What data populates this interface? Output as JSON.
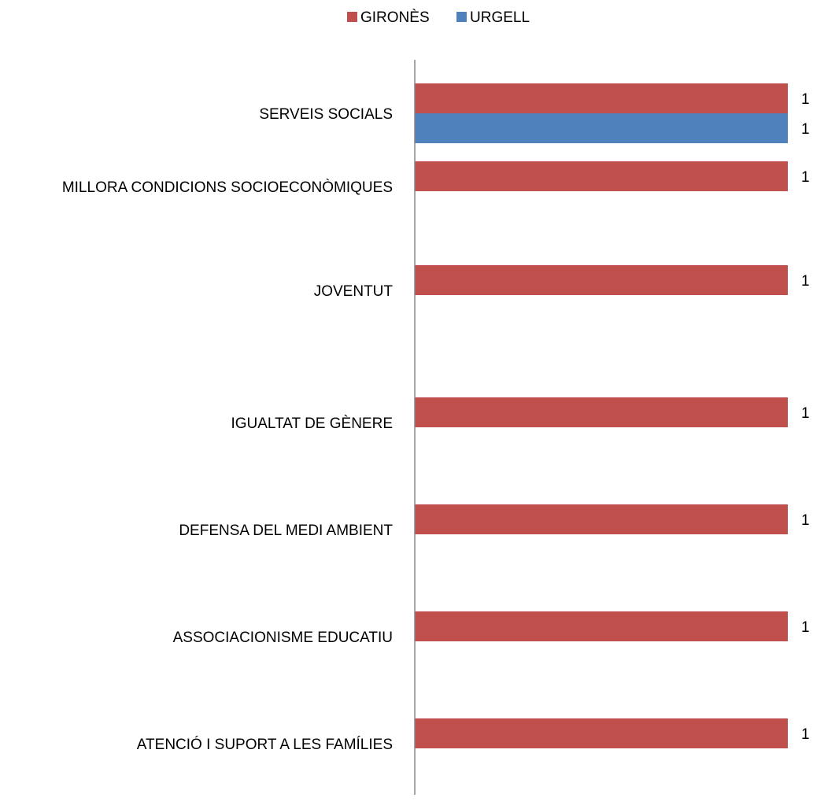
{
  "chart_data": {
    "type": "bar",
    "orientation": "horizontal",
    "categories": [
      "SERVEIS SOCIALS",
      "MILLORA CONDICIONS SOCIOECONÒMIQUES",
      "JOVENTUT",
      "IGUALTAT DE GÈNERE",
      "DEFENSA DEL MEDI AMBIENT",
      "ASSOCIACIONISME EDUCATIU",
      "ATENCIÓ I SUPORT A LES FAMÍLIES"
    ],
    "series": [
      {
        "name": "GIRONÈS",
        "color": "#C0504D",
        "values": [
          1,
          1,
          1,
          1,
          1,
          1,
          1
        ],
        "labels": [
          "1",
          "1",
          "1",
          "1",
          "1",
          "1",
          "1"
        ]
      },
      {
        "name": "URGELL",
        "color": "#4F81BD",
        "values": [
          1,
          null,
          null,
          null,
          null,
          null,
          null
        ],
        "labels": [
          "1",
          null,
          null,
          null,
          null,
          null,
          null
        ]
      }
    ],
    "xlim": [
      0,
      1
    ],
    "legend_position": "top",
    "grid": false
  }
}
